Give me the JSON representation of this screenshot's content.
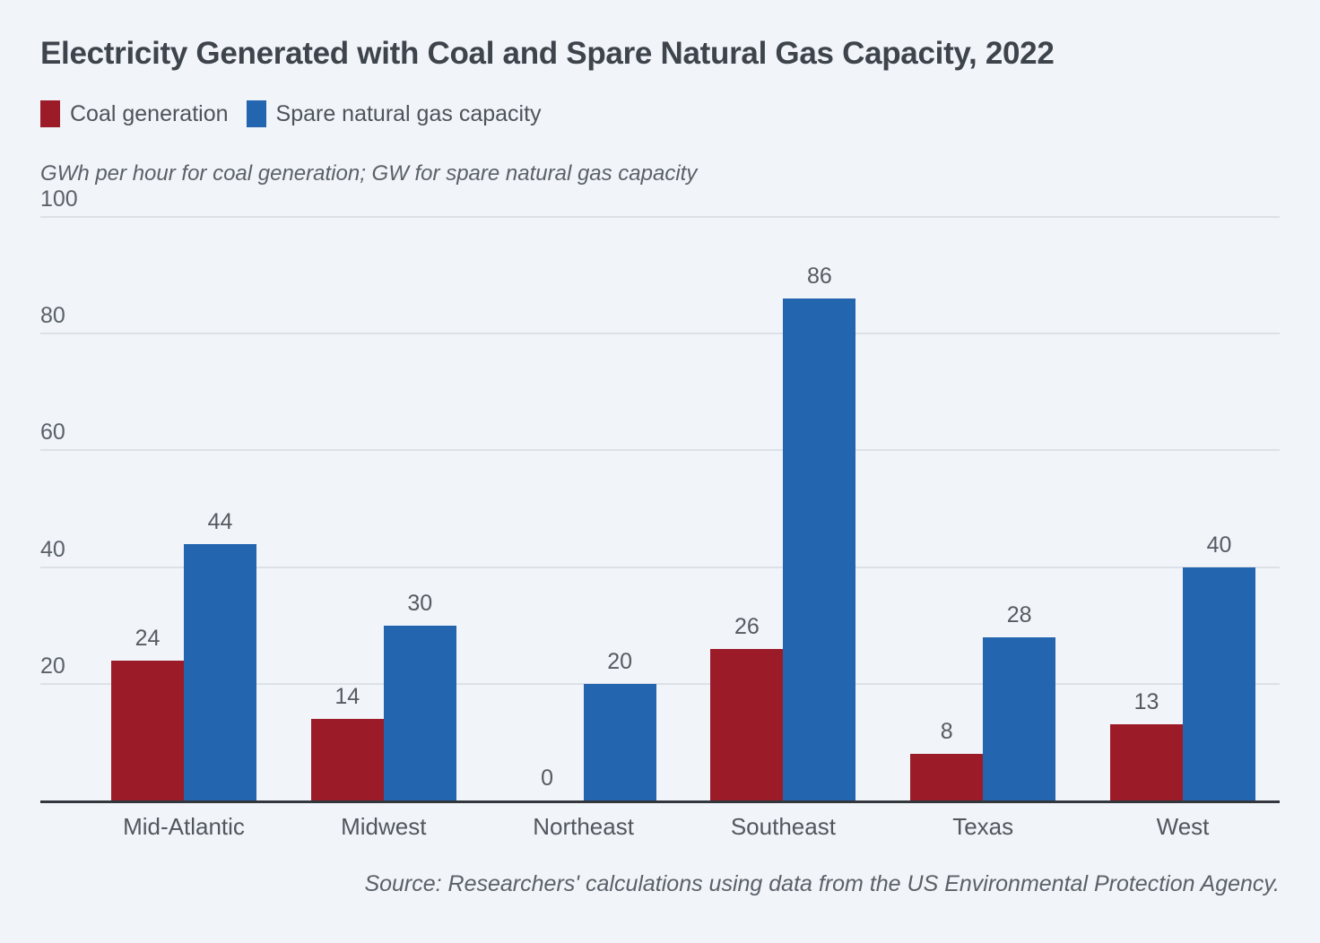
{
  "chart_data": {
    "type": "bar",
    "title": "Electricity Generated with Coal and Spare Natural Gas Capacity, 2022",
    "units_note": "GWh per hour for coal generation; GW for spare natural gas capacity",
    "categories": [
      "Mid-Atlantic",
      "Midwest",
      "Northeast",
      "Southeast",
      "Texas",
      "West"
    ],
    "series": [
      {
        "name": "Coal generation",
        "color": "#9C1B29",
        "values": [
          24,
          14,
          0,
          26,
          8,
          13
        ]
      },
      {
        "name": "Spare natural gas capacity",
        "color": "#2465AF",
        "values": [
          44,
          30,
          20,
          86,
          28,
          40
        ]
      }
    ],
    "ylim": [
      0,
      100
    ],
    "yticks": [
      20,
      40,
      60,
      80,
      100
    ],
    "grid": "horizontal",
    "legend_position": "top-left",
    "value_labels": true,
    "source": "Source: Researchers' calculations using data from the US Environmental Protection Agency."
  },
  "colors": {
    "background": "#F1F4F9",
    "title_text": "#3E444B",
    "label_text": "#555B62",
    "gridline": "#DCE1E8",
    "axis_line": "#31373D"
  }
}
